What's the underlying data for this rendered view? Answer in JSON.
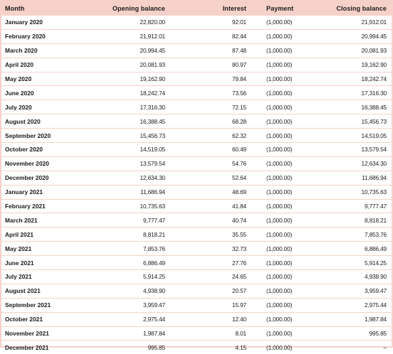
{
  "columns": {
    "month": "Month",
    "opening": "Opening balance",
    "interest": "Interest",
    "payment": "Payment",
    "closing": "Closing balance"
  },
  "rows": [
    {
      "month": "January 2020",
      "opening": "22,820.00",
      "interest": "92.01",
      "payment": "(1,000.00)",
      "closing": "21,912.01"
    },
    {
      "month": "February 2020",
      "opening": "21,912.01",
      "interest": "82.44",
      "payment": "(1,000.00)",
      "closing": "20,994.45"
    },
    {
      "month": "March 2020",
      "opening": "20,994.45",
      "interest": "87.48",
      "payment": "(1,000.00)",
      "closing": "20,081.93"
    },
    {
      "month": "April 2020",
      "opening": "20,081.93",
      "interest": "80.97",
      "payment": "(1,000.00)",
      "closing": "19,162.90"
    },
    {
      "month": "May 2020",
      "opening": "19,162.90",
      "interest": "79.84",
      "payment": "(1,000.00)",
      "closing": "18,242.74"
    },
    {
      "month": "June 2020",
      "opening": "18,242.74",
      "interest": "73.56",
      "payment": "(1,000.00)",
      "closing": "17,316.30"
    },
    {
      "month": "July 2020",
      "opening": "17,316.30",
      "interest": "72.15",
      "payment": "(1,000.00)",
      "closing": "16,388.45"
    },
    {
      "month": "August 2020",
      "opening": "16,388.45",
      "interest": "68.28",
      "payment": "(1,000.00)",
      "closing": "15,456.73"
    },
    {
      "month": "September 2020",
      "opening": "15,456.73",
      "interest": "62.32",
      "payment": "(1,000.00)",
      "closing": "14,519.05"
    },
    {
      "month": "October 2020",
      "opening": "14,519.05",
      "interest": "60.49",
      "payment": "(1,000.00)",
      "closing": "13,579.54"
    },
    {
      "month": "November 2020",
      "opening": "13,579.54",
      "interest": "54.76",
      "payment": "(1,000.00)",
      "closing": "12,634.30"
    },
    {
      "month": "December 2020",
      "opening": "12,634.30",
      "interest": "52.64",
      "payment": "(1,000.00)",
      "closing": "11,686.94"
    },
    {
      "month": "January 2021",
      "opening": "11,686.94",
      "interest": "48.69",
      "payment": "(1,000.00)",
      "closing": "10,735.63"
    },
    {
      "month": "February 2021",
      "opening": "10,735.63",
      "interest": "41.84",
      "payment": "(1,000.00)",
      "closing": "9,777.47"
    },
    {
      "month": "March 2021",
      "opening": "9,777.47",
      "interest": "40.74",
      "payment": "(1,000.00)",
      "closing": "8,818.21"
    },
    {
      "month": "April 2021",
      "opening": "8,818.21",
      "interest": "35.55",
      "payment": "(1,000.00)",
      "closing": "7,853.76"
    },
    {
      "month": "May 2021",
      "opening": "7,853.76",
      "interest": "32.73",
      "payment": "(1,000.00)",
      "closing": "6,886.49"
    },
    {
      "month": "June 2021",
      "opening": "6,886.49",
      "interest": "27.76",
      "payment": "(1,000.00)",
      "closing": "5,914.25"
    },
    {
      "month": "July 2021",
      "opening": "5,914.25",
      "interest": "24.65",
      "payment": "(1,000.00)",
      "closing": "4,938.90"
    },
    {
      "month": "August 2021",
      "opening": "4,938.90",
      "interest": "20.57",
      "payment": "(1,000.00)",
      "closing": "3,959.47"
    },
    {
      "month": "September 2021",
      "opening": "3,959.47",
      "interest": "15.97",
      "payment": "(1,000.00)",
      "closing": "2,975.44"
    },
    {
      "month": "October 2021",
      "opening": "2,975.44",
      "interest": "12.40",
      "payment": "(1,000.00)",
      "closing": "1,987.84"
    },
    {
      "month": "November 2021",
      "opening": "1,987.84",
      "interest": "8.01",
      "payment": "(1,000.00)",
      "closing": "995.85"
    },
    {
      "month": "December 2021",
      "opening": "995.85",
      "interest": "4.15",
      "payment": "(1,000.00)",
      "closing": "–"
    }
  ]
}
